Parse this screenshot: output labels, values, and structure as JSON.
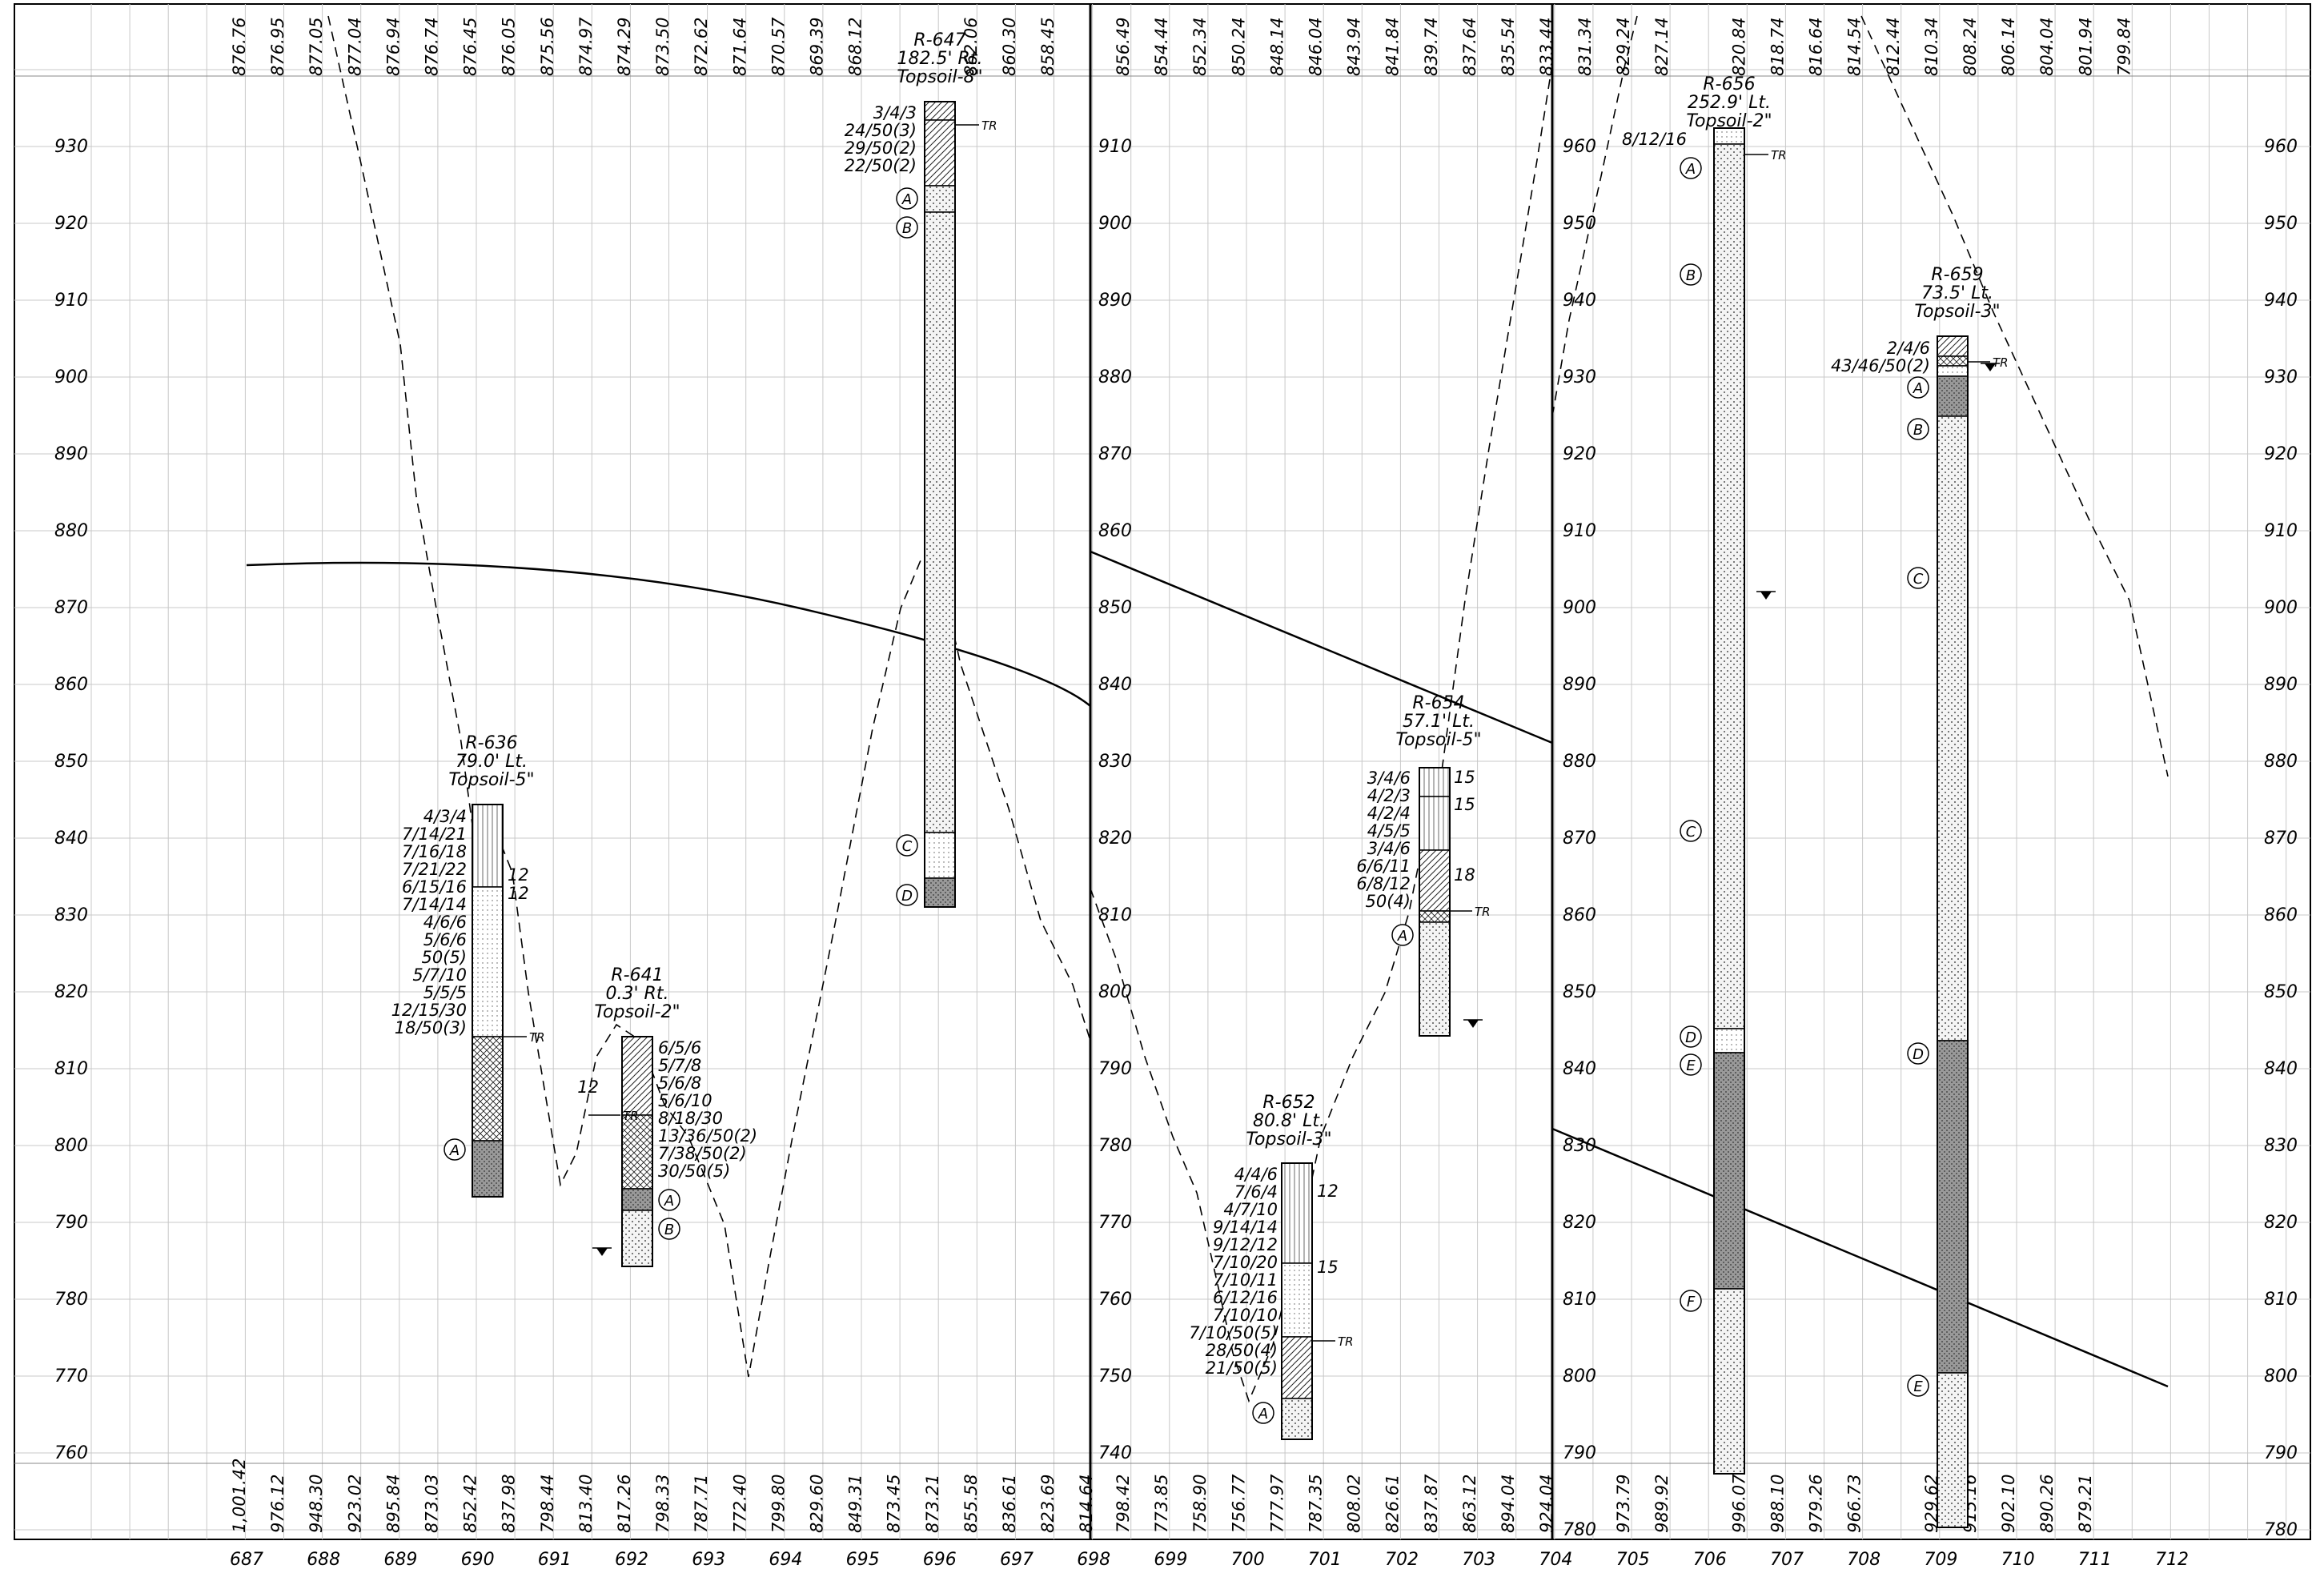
{
  "stations": [
    "687",
    "688",
    "689",
    "690",
    "691",
    "692",
    "693",
    "694",
    "695",
    "696",
    "697",
    "698",
    "699",
    "700",
    "701",
    "702",
    "703",
    "704",
    "705",
    "706",
    "707",
    "708",
    "709",
    "710",
    "711",
    "712"
  ],
  "panel1": {
    "elev_labels": [
      "930",
      "920",
      "910",
      "900",
      "890",
      "880",
      "870",
      "860",
      "850",
      "840",
      "830",
      "820",
      "810",
      "800",
      "790",
      "780",
      "770",
      "760"
    ],
    "top_values": [
      "876.76",
      "876.95",
      "877.05",
      "877.04",
      "876.94",
      "876.74",
      "876.45",
      "876.05",
      "875.56",
      "874.97",
      "874.29",
      "873.50",
      "872.62",
      "871.64",
      "870.57",
      "869.39",
      "868.12",
      "",
      "",
      "862.06",
      "860.30",
      "858.45"
    ],
    "bottom_values": [
      "1,001.42",
      "976.12",
      "948.30",
      "923.02",
      "895.84",
      "873.03",
      "852.42",
      "837.98",
      "798.44",
      "813.40",
      "817.26",
      "798.33",
      "787.71",
      "772.40",
      "799.80",
      "829.60",
      "849.31",
      "873.45",
      "873.21",
      "855.58",
      "836.61",
      "823.69",
      "814.64"
    ]
  },
  "panel2": {
    "elev_labels": [
      "910",
      "900",
      "890",
      "880",
      "870",
      "860",
      "850",
      "840",
      "830",
      "820",
      "810",
      "800",
      "790",
      "780",
      "770",
      "760",
      "750",
      "740"
    ],
    "top_values": [
      "856.49",
      "854.44",
      "852.34",
      "850.24",
      "848.14",
      "846.04",
      "843.94",
      "841.84",
      "839.74",
      "837.64",
      "835.54",
      "833.44"
    ],
    "bottom_values": [
      "798.42",
      "773.85",
      "758.90",
      "756.77",
      "777.97",
      "787.35",
      "808.02",
      "826.61",
      "837.87",
      "863.12",
      "894.04",
      "924.04"
    ]
  },
  "panel3": {
    "elev_labels_left": [
      "960",
      "950",
      "940",
      "930",
      "920",
      "910",
      "900",
      "890",
      "880",
      "870",
      "860",
      "850",
      "840",
      "830",
      "820",
      "810",
      "800",
      "790",
      "780"
    ],
    "elev_labels_right": [
      "960",
      "950",
      "940",
      "930",
      "920",
      "910",
      "900",
      "890",
      "880",
      "870",
      "860",
      "850",
      "840",
      "830",
      "820",
      "810",
      "800",
      "790",
      "780"
    ],
    "top_values": [
      "831.34",
      "829.24",
      "827.14",
      "",
      "820.84",
      "818.74",
      "816.64",
      "814.54",
      "812.44",
      "810.34",
      "808.24",
      "806.14",
      "804.04",
      "801.94",
      "799.84"
    ],
    "bottom_values": [
      "973.79",
      "989.92",
      "",
      "996.07",
      "988.10",
      "979.26",
      "966.73",
      "",
      "929.62",
      "915.16",
      "902.10",
      "890.26",
      "879.21"
    ]
  },
  "borings": [
    {
      "name": "R-636",
      "offset": "79.0' Lt.",
      "topsoil": "Topsoil-5\"",
      "blows": [
        "4/3/4",
        "7/14/21",
        "7/16/18",
        "7/21/22",
        "6/15/16",
        "7/14/14",
        "4/6/6",
        "5/6/6",
        "50(5)",
        "5/7/10",
        "5/5/5",
        "12/15/30",
        "18/50(3)"
      ],
      "right": [
        "12",
        "12"
      ],
      "tr": "TR",
      "layers": [
        "A"
      ]
    },
    {
      "name": "R-641",
      "offset": "0.3' Rt.",
      "topsoil": "Topsoil-2\"",
      "blows": [
        "6/5/6",
        "5/7/8",
        "5/6/8",
        "5/6/10",
        "8/18/30",
        "13/36/50(2)",
        "7/38/50(2)",
        "30/50(5)"
      ],
      "left": "12",
      "tr": "TR",
      "layers": [
        "A",
        "B"
      ]
    },
    {
      "name": "R-647",
      "offset": "182.5' Rt.",
      "topsoil": "Topsoil-8\"",
      "blows": [
        "3/4/3",
        "24/50(3)",
        "29/50(2)",
        "22/50(2)"
      ],
      "tr": "TR",
      "layers": [
        "A",
        "B",
        "C",
        "D"
      ]
    },
    {
      "name": "R-652",
      "offset": "80.8' Lt.",
      "topsoil": "Topsoil-3\"",
      "blows": [
        "4/4/6",
        "7/6/4",
        "4/7/10",
        "9/14/14",
        "9/12/12",
        "7/10/20",
        "7/10/11",
        "6/12/16",
        "7/10/10",
        "7/10/50(5)",
        "28/50(4)",
        "21/50(5)"
      ],
      "right": [
        "12",
        "15"
      ],
      "tr": "TR",
      "layers": [
        "A"
      ]
    },
    {
      "name": "R-654",
      "offset": "57.1' Lt.",
      "topsoil": "Topsoil-5\"",
      "blows": [
        "3/4/6",
        "4/2/3",
        "4/2/4",
        "4/5/5",
        "3/4/6",
        "6/6/11",
        "6/8/12",
        "50(4)"
      ],
      "right": [
        "15",
        "15",
        "18"
      ],
      "tr": "TR",
      "layers": [
        "A"
      ]
    },
    {
      "name": "R-656",
      "offset": "252.9' Lt.",
      "topsoil": "Topsoil-2\"",
      "blows": [
        "8/12/16"
      ],
      "tr": "TR",
      "layers": [
        "A",
        "B",
        "C",
        "D",
        "E",
        "F"
      ]
    },
    {
      "name": "R-659",
      "offset": "73.5' Lt.",
      "topsoil": "Topsoil-3\"",
      "blows": [
        "2/4/6",
        "43/46/50(2)"
      ],
      "tr": "TR",
      "layers": [
        "A",
        "B",
        "C",
        "D",
        "E"
      ]
    }
  ]
}
